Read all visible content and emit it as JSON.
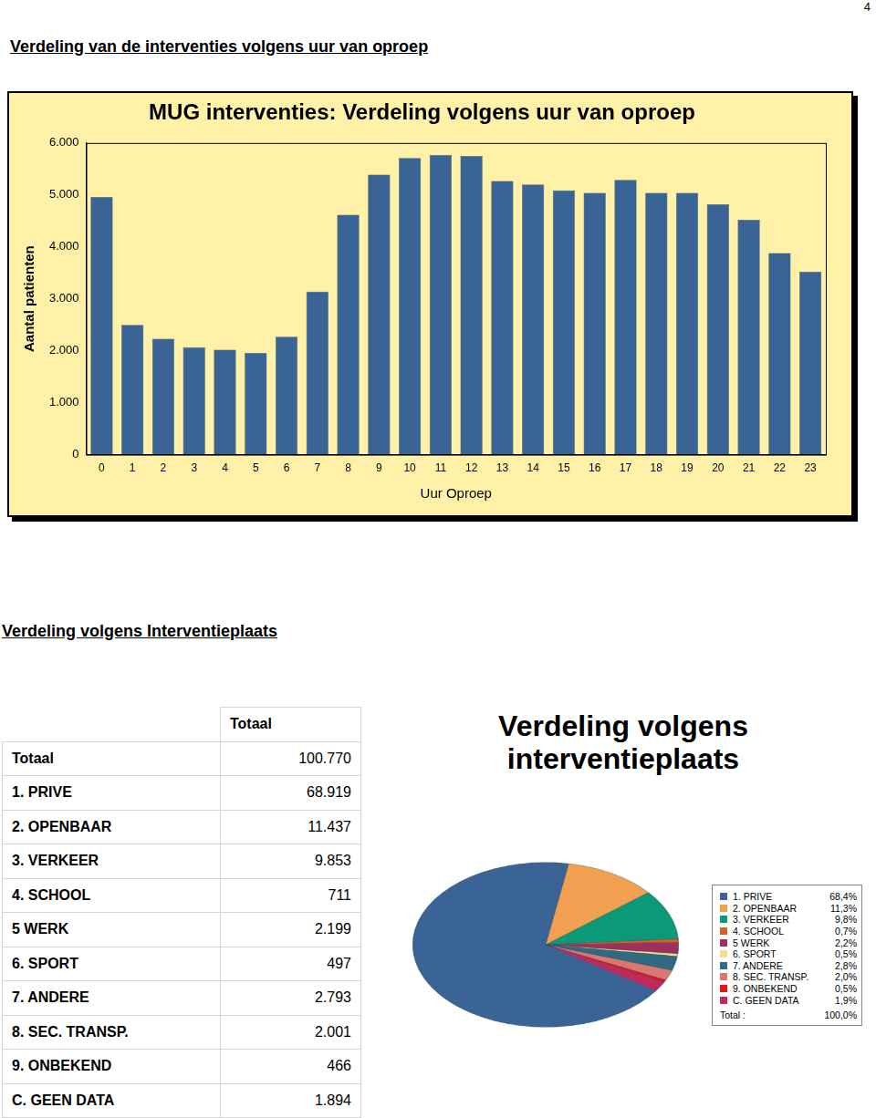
{
  "page": {
    "number": 4,
    "headings": [
      "Verdeling van de interventies volgens uur van oproep",
      "Verdeling volgens Interventieplaats"
    ]
  },
  "table": {
    "columns": [
      "Totaal"
    ],
    "rows": [
      [
        "Totaal",
        "100.770"
      ],
      [
        "1. PRIVE",
        "68.919"
      ],
      [
        "2. OPENBAAR",
        "11.437"
      ],
      [
        "3. VERKEER",
        "9.853"
      ],
      [
        "4. SCHOOL",
        "711"
      ],
      [
        "5 WERK",
        "2.199"
      ],
      [
        "6. SPORT",
        "497"
      ],
      [
        "7. ANDERE",
        "2.793"
      ],
      [
        "8. SEC. TRANSP.",
        "2.001"
      ],
      [
        "9. ONBEKEND",
        "466"
      ],
      [
        "C. GEEN DATA",
        "1.894"
      ]
    ]
  },
  "chart_data": [
    {
      "type": "bar",
      "title": "MUG interventies: Verdeling volgens uur van oproep",
      "x_label": "Uur Oproep",
      "y_label": "Aantal patienten",
      "categories": [
        "0",
        "1",
        "2",
        "3",
        "4",
        "5",
        "6",
        "7",
        "8",
        "9",
        "10",
        "11",
        "12",
        "13",
        "14",
        "15",
        "16",
        "17",
        "18",
        "19",
        "20",
        "21",
        "22",
        "23"
      ],
      "values": [
        4960,
        2500,
        2230,
        2070,
        2020,
        1960,
        2270,
        3140,
        4620,
        5390,
        5710,
        5770,
        5750,
        5270,
        5200,
        5090,
        5040,
        5290,
        5040,
        5040,
        4820,
        4520,
        3880,
        3520
      ],
      "color": "#3A6496",
      "ylim": [
        0,
        6000
      ],
      "yticks": [
        0,
        {
          "value": 1000,
          "label": "1.000"
        },
        {
          "value": 2000,
          "label": "2.000"
        },
        {
          "value": 3000,
          "label": "3.000"
        },
        {
          "value": 4000,
          "label": "4.000"
        },
        {
          "value": 5000,
          "label": "5.000"
        },
        {
          "value": 6000,
          "label": "6.000"
        }
      ],
      "grid": false
    },
    {
      "type": "pie",
      "title": "Verdeling volgens interventieplaats",
      "categories": [
        "1. PRIVE",
        "2. OPENBAAR",
        "3. VERKEER",
        "4. SCHOOL",
        "5 WERK",
        "6. SPORT",
        "7. ANDERE",
        "8. SEC. TRANSP.",
        "9. ONBEKEND",
        "C. GEEN DATA"
      ],
      "values": [
        68.4,
        11.3,
        9.8,
        0.7,
        2.2,
        0.5,
        2.8,
        2.0,
        0.5,
        1.9
      ],
      "value_labels": [
        "68,4%",
        "11,3%",
        "9,8%",
        "0,7%",
        "2,2%",
        "0,5%",
        "2,8%",
        "2,0%",
        "0,5%",
        "1,9%"
      ],
      "colors": [
        "#3A6496",
        "#F0A050",
        "#0A9A78",
        "#D86020",
        "#9E3060",
        "#F5E08A",
        "#2E6A80",
        "#D87870",
        "#E8101A",
        "#C02860"
      ],
      "legend": "right",
      "legend_total": {
        "label": "Total :",
        "value": 100,
        "value_label": "100,0%"
      }
    }
  ]
}
